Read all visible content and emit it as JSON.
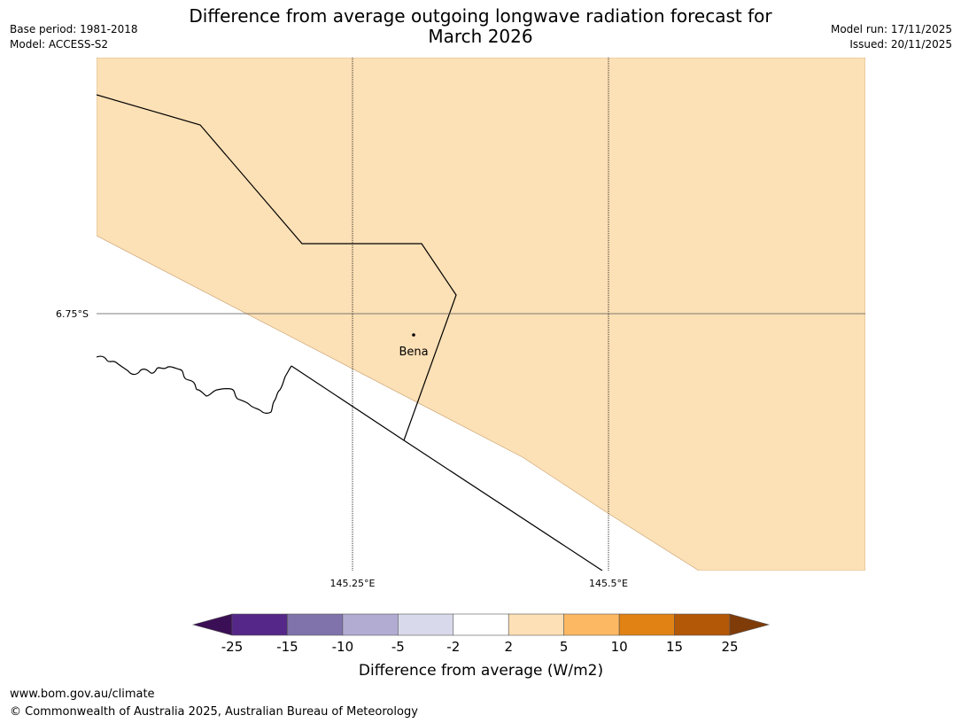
{
  "header": {
    "title_line1": "Difference from average outgoing longwave radiation forecast for",
    "title_line2": "March 2026",
    "base_period": "Base period: 1981-2018",
    "model": "Model: ACCESS-S2",
    "model_run": "Model run: 17/11/2025",
    "issued": "Issued: 20/11/2025"
  },
  "map": {
    "latitude_labels": [
      "6.75°S"
    ],
    "longitude_labels": [
      "145.25°E",
      "145.5°E"
    ],
    "places": [
      {
        "name": "Bena"
      }
    ],
    "colors": {
      "land_fill": "#fce0b6",
      "border": "#000000",
      "gridline": "#000000",
      "contour_edge": "#c8a070"
    }
  },
  "colorbar": {
    "title": "Difference from average (W/m2)",
    "ticks": [
      "-25",
      "-15",
      "-10",
      "-5",
      "-2",
      "2",
      "5",
      "10",
      "15",
      "25"
    ],
    "low_extend_color": "#3b0f55",
    "high_extend_color": "#7f3b08",
    "bins": [
      {
        "color": "#542788"
      },
      {
        "color": "#8073ac"
      },
      {
        "color": "#b2abd2"
      },
      {
        "color": "#d8daeb"
      },
      {
        "color": "#ffffff"
      },
      {
        "color": "#fee0b6"
      },
      {
        "color": "#fdb863"
      },
      {
        "color": "#e08214"
      },
      {
        "color": "#b35806"
      }
    ]
  },
  "footer": {
    "url": "www.bom.gov.au/climate",
    "copyright": "© Commonwealth of Australia 2025, Australian Bureau of Meteorology"
  }
}
